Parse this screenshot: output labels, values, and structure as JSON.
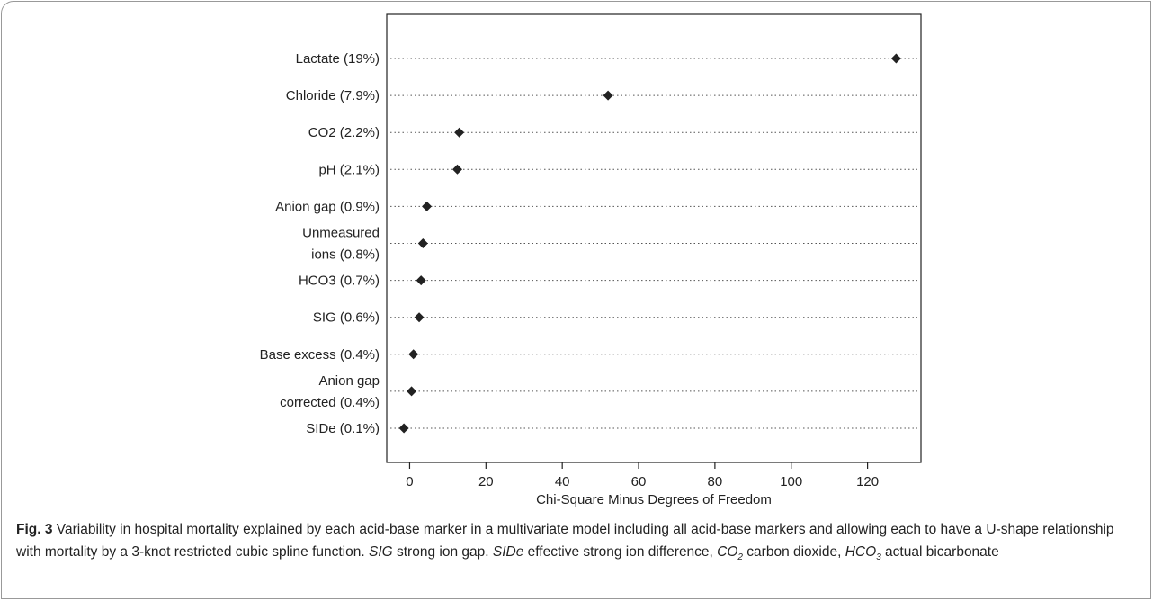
{
  "chart_data": {
    "type": "scatter",
    "title": "",
    "xlabel": "Chi-Square Minus Degrees of Freedom",
    "ylabel": "",
    "xlim": [
      -6,
      134
    ],
    "xticks": [
      0,
      20,
      40,
      60,
      80,
      100,
      120
    ],
    "grid": "dotted horizontal guide lines",
    "categories": [
      [
        "Lactate  (19%)"
      ],
      [
        "Chloride (7.9%)"
      ],
      [
        "CO2 (2.2%)"
      ],
      [
        "pH (2.1%)"
      ],
      [
        "Anion gap (0.9%)"
      ],
      [
        "Unmeasured",
        "ions (0.8%)"
      ],
      [
        "HCO3 (0.7%)"
      ],
      [
        "SIG (0.6%)"
      ],
      [
        "Base excess (0.4%)"
      ],
      [
        "Anion gap",
        "corrected (0.4%)"
      ],
      [
        "SIDe (0.1%)"
      ]
    ],
    "values": [
      127.5,
      52,
      13,
      12.5,
      4.5,
      3.5,
      3,
      2.5,
      1,
      0.5,
      -1.5
    ]
  },
  "caption": {
    "label": "Fig. 3",
    "text1": " Variability in hospital mortality explained by each acid-base marker in a multivariate model including all acid-base markers and allowing each to have a U-shape relationship with mortality by a 3-knot restricted cubic spline function. ",
    "sig_abbr": "SIG",
    "text2": " strong ion gap. ",
    "side_abbr": "SIDe",
    "text3": " effective strong ion difference, ",
    "co2_abbr": "CO",
    "co2_sub": "2",
    "text4": " carbon dioxide, ",
    "hco3_abbr": "HCO",
    "hco3_sub": "3",
    "text5": " actual bicarbonate"
  },
  "colors": {
    "marker": "#222222",
    "axis": "#222222",
    "guide": "#555555"
  }
}
